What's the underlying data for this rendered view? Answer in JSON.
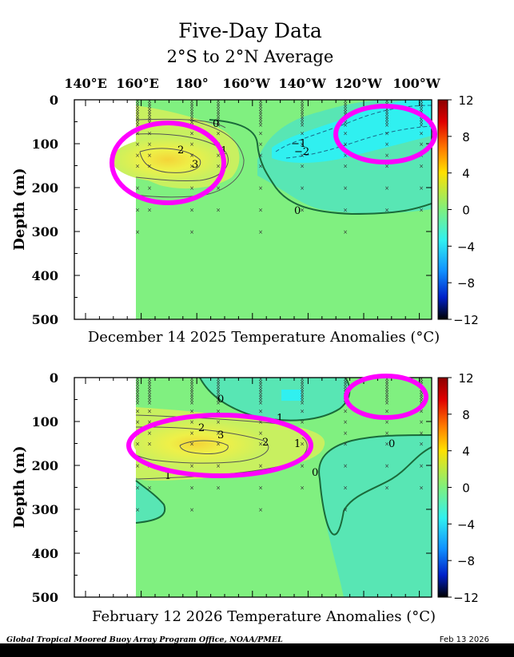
{
  "header": {
    "title": "Five-Day Data",
    "subtitle": "2°S to 2°N Average",
    "x_ticks": [
      "140°E",
      "160°E",
      "180°",
      "160°W",
      "140°W",
      "120°W",
      "100°W"
    ]
  },
  "colorbar": {
    "ticks": [
      "12",
      "8",
      "4",
      "0",
      "−4",
      "−8",
      "−12"
    ],
    "range": [
      -12,
      12
    ]
  },
  "colors": {
    "background": "#ffffff",
    "no_data": "#ffffff",
    "neutral_anomaly": "#80f080",
    "warm_1": "#c8f060",
    "warm_2": "#eef048",
    "warm_3": "#f4d438",
    "cool_1": "#58e6b4",
    "cool_2": "#30f0f0",
    "highlight": "#ff00ff"
  },
  "footer": {
    "credit": "Global Tropical Moored Buoy Array Program Office, NOAA/PMEL",
    "date": "Feb 13 2026"
  },
  "chart_data": [
    {
      "type": "heatmap",
      "title": "December 14 2025 Temperature Anomalies (°C)",
      "ylabel": "Depth (m)",
      "x_range": [
        "140°E",
        "100°W"
      ],
      "ylim": [
        500,
        0
      ],
      "y_ticks": [
        "0",
        "100",
        "200",
        "300",
        "400",
        "500"
      ],
      "contour_labels": [
        "0",
        "1",
        "2",
        "3",
        "−1",
        "−2",
        "0"
      ],
      "features": [
        {
          "name": "warm anomaly",
          "longitude": "165°E–170°W",
          "depth_m": [
            100,
            220
          ],
          "max_anomaly": 3
        },
        {
          "name": "cool anomaly",
          "longitude": "135°W–95°W",
          "depth_m": [
            20,
            140
          ],
          "min_anomaly": -2
        }
      ]
    },
    {
      "type": "heatmap",
      "title": "February 12 2026 Temperature Anomalies (°C)",
      "ylabel": "Depth (m)",
      "x_range": [
        "140°E",
        "100°W"
      ],
      "ylim": [
        500,
        0
      ],
      "y_ticks": [
        "0",
        "100",
        "200",
        "300",
        "400",
        "500"
      ],
      "contour_labels": [
        "0",
        "1",
        "2",
        "3",
        "2",
        "1",
        "1",
        "0",
        "0"
      ],
      "features": [
        {
          "name": "warm anomaly",
          "longitude": "165°E–150°W",
          "depth_m": [
            100,
            240
          ],
          "max_anomaly": 3
        },
        {
          "name": "cool anomaly",
          "longitude": "130°W–95°W",
          "depth_m": [
            140,
            300
          ],
          "min_anomaly": -1
        }
      ]
    }
  ]
}
